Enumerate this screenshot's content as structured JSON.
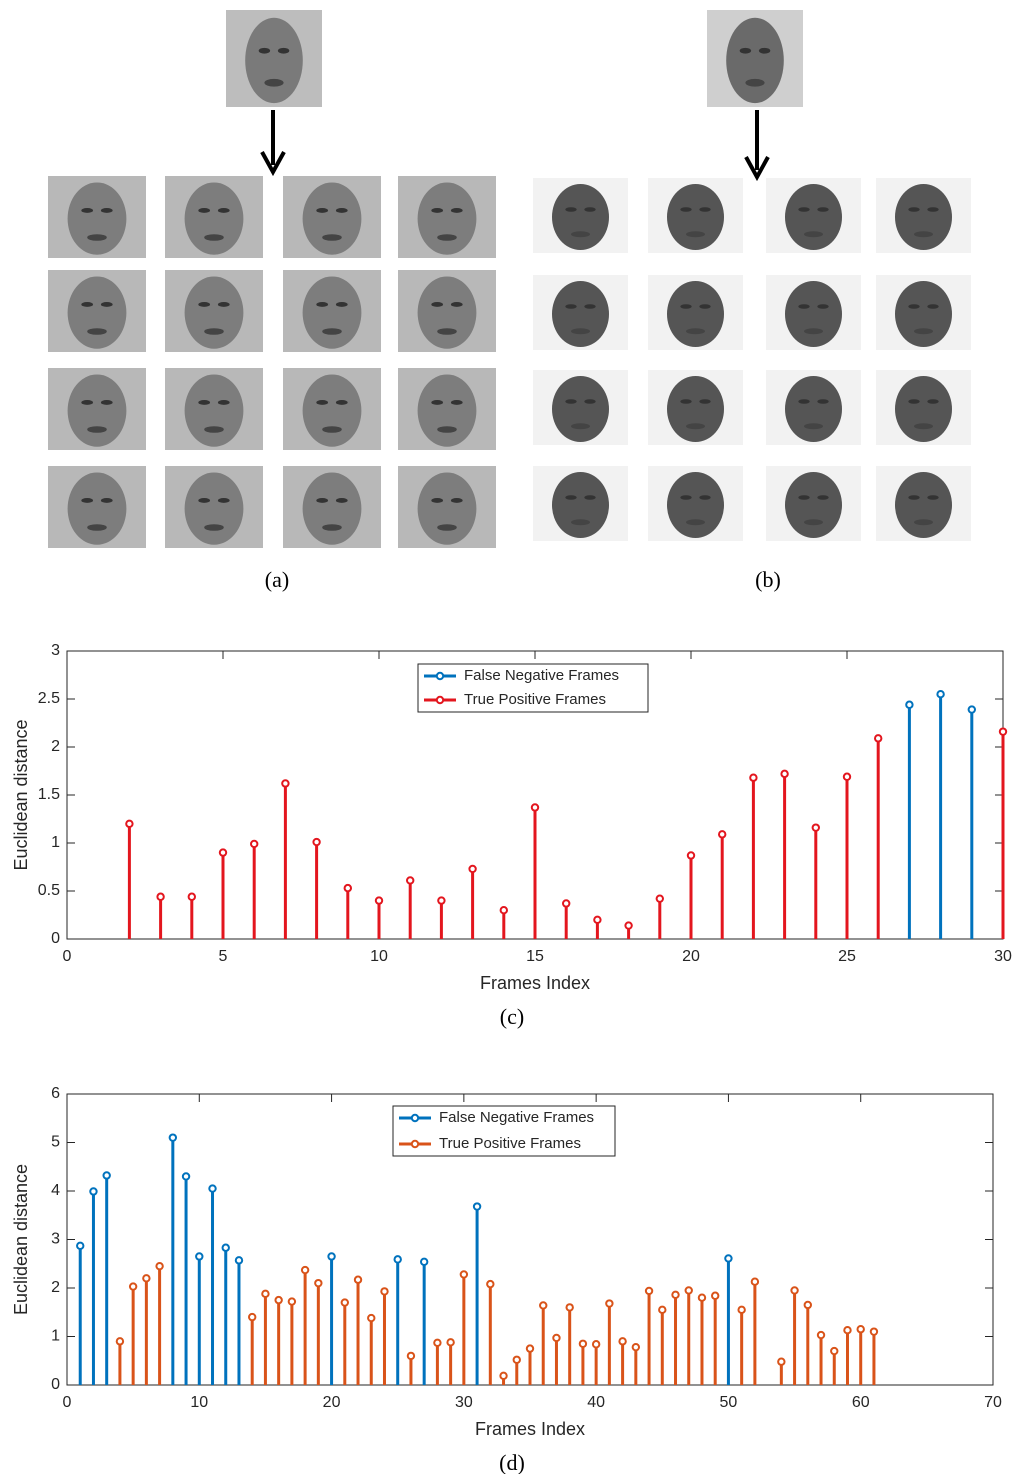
{
  "panels": [
    {
      "caption": "(a)"
    },
    {
      "caption": "(b)"
    }
  ],
  "chart_data": [
    {
      "type": "stem",
      "caption": "(c)",
      "x_label": "Frames Index",
      "y_label": "Euclidean distance",
      "xlim": [
        0,
        30
      ],
      "xticks": [
        0,
        5,
        10,
        15,
        20,
        25,
        30
      ],
      "ylim": [
        0,
        3
      ],
      "yticks": [
        0,
        0.5,
        1,
        1.5,
        2,
        2.5,
        3
      ],
      "legend": "top-center",
      "series": [
        {
          "name": "False Negative Frames",
          "color": "#0072bd",
          "x": [
            27,
            28,
            29
          ],
          "values": [
            2.44,
            2.55,
            2.39
          ]
        },
        {
          "name": "True Positive Frames",
          "color": "#e3161e",
          "x": [
            2,
            3,
            4,
            5,
            6,
            7,
            8,
            9,
            10,
            11,
            12,
            13,
            14,
            15,
            16,
            17,
            18,
            19,
            20,
            21,
            22,
            23,
            24,
            25,
            26,
            30
          ],
          "values": [
            1.2,
            0.44,
            0.44,
            0.9,
            0.99,
            1.62,
            1.01,
            0.53,
            0.4,
            0.61,
            0.4,
            0.73,
            0.3,
            1.37,
            0.37,
            0.2,
            0.14,
            0.42,
            0.87,
            1.09,
            1.68,
            1.72,
            1.16,
            1.69,
            2.09,
            2.16
          ]
        }
      ]
    },
    {
      "type": "stem",
      "caption": "(d)",
      "x_label": "Frames Index",
      "y_label": "Euclidean distance",
      "xlim": [
        0,
        70
      ],
      "xticks": [
        0,
        10,
        20,
        30,
        40,
        50,
        60,
        70
      ],
      "ylim": [
        0,
        6
      ],
      "yticks": [
        0,
        1,
        2,
        3,
        4,
        5,
        6
      ],
      "legend": "top-center",
      "series": [
        {
          "name": "False Negative Frames",
          "color": "#0072bd",
          "x": [
            1,
            2,
            3,
            8,
            9,
            10,
            11,
            12,
            13,
            20,
            25,
            27,
            31,
            50
          ],
          "values": [
            2.87,
            3.99,
            4.32,
            5.1,
            4.3,
            2.65,
            4.05,
            2.83,
            2.57,
            2.65,
            2.59,
            2.54,
            3.68,
            2.61
          ]
        },
        {
          "name": "True Positive Frames",
          "color": "#d95319",
          "x": [
            4,
            5,
            6,
            7,
            14,
            15,
            16,
            17,
            18,
            19,
            21,
            22,
            23,
            24,
            26,
            28,
            29,
            30,
            32,
            33,
            34,
            35,
            36,
            37,
            38,
            39,
            40,
            41,
            42,
            43,
            44,
            45,
            46,
            47,
            48,
            49,
            51,
            52,
            54,
            55,
            56,
            57,
            58,
            59,
            60,
            61
          ],
          "values": [
            0.9,
            2.03,
            2.2,
            2.45,
            1.4,
            1.88,
            1.75,
            1.72,
            2.37,
            2.1,
            1.7,
            2.17,
            1.38,
            1.93,
            0.6,
            0.87,
            0.88,
            2.28,
            2.08,
            0.19,
            0.52,
            0.75,
            1.64,
            0.97,
            1.6,
            0.85,
            0.84,
            1.68,
            0.9,
            0.78,
            1.94,
            1.55,
            1.86,
            1.95,
            1.8,
            1.84,
            1.55,
            2.13,
            0.48,
            1.95,
            1.65,
            1.03,
            0.7,
            1.13,
            1.15,
            1.1
          ]
        }
      ]
    }
  ]
}
